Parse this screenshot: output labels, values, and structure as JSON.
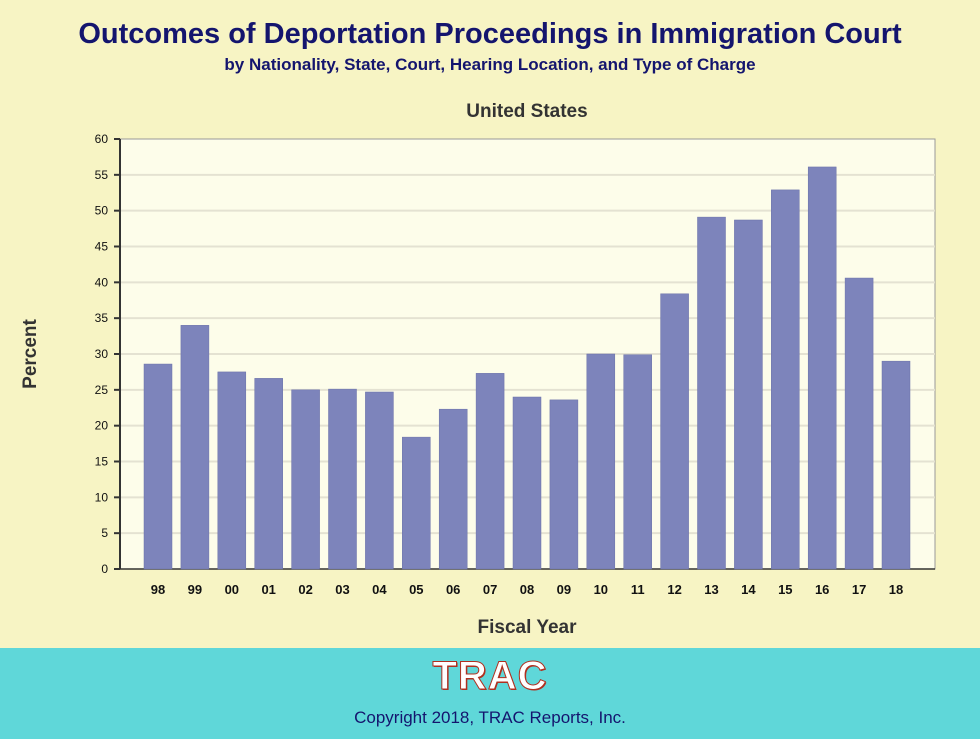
{
  "header": {
    "title": "Outcomes of Deportation Proceedings in Immigration Court",
    "subtitle": "by Nationality, State, Court, Hearing Location, and Type of Charge"
  },
  "chart_data": {
    "type": "bar",
    "title": "United States",
    "xlabel": "Fiscal Year",
    "ylabel": "Percent",
    "categories": [
      "98",
      "99",
      "00",
      "01",
      "02",
      "03",
      "04",
      "05",
      "06",
      "07",
      "08",
      "09",
      "10",
      "11",
      "12",
      "13",
      "14",
      "15",
      "16",
      "17",
      "18"
    ],
    "values": [
      28.6,
      34.0,
      27.5,
      26.6,
      25.0,
      25.1,
      24.7,
      18.4,
      22.3,
      27.3,
      24.0,
      23.6,
      30.0,
      29.9,
      38.4,
      49.1,
      48.7,
      52.9,
      56.1,
      40.6,
      29.0
    ],
    "ylim": [
      0,
      60
    ],
    "yticks": [
      0,
      5,
      10,
      15,
      20,
      25,
      30,
      35,
      40,
      45,
      50,
      55,
      60
    ],
    "grid": true,
    "colors": {
      "bar": "#7d84bb",
      "plot_bg": "#fdfdea",
      "grid": "#e4e2d2"
    }
  },
  "footer": {
    "logo": "TRAC",
    "copyright": "Copyright 2018, TRAC Reports, Inc."
  }
}
